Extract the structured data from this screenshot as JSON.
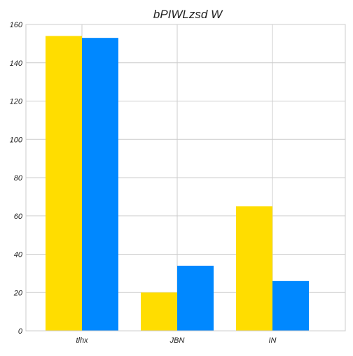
{
  "chart_data": {
    "type": "bar",
    "title": "bPIWLzsd W",
    "xlabel": "",
    "ylabel": "",
    "categories": [
      "tlhx",
      "JBN",
      "IN"
    ],
    "series": [
      {
        "values": [
          154,
          20,
          65
        ],
        "color": "#FFDD00"
      },
      {
        "values": [
          153,
          34,
          26
        ],
        "color": "#0088FF"
      }
    ],
    "ylim": [
      0,
      160
    ],
    "yticks": [
      0,
      20,
      40,
      60,
      80,
      100,
      120,
      140,
      160
    ],
    "grid": true,
    "legend": "none"
  }
}
